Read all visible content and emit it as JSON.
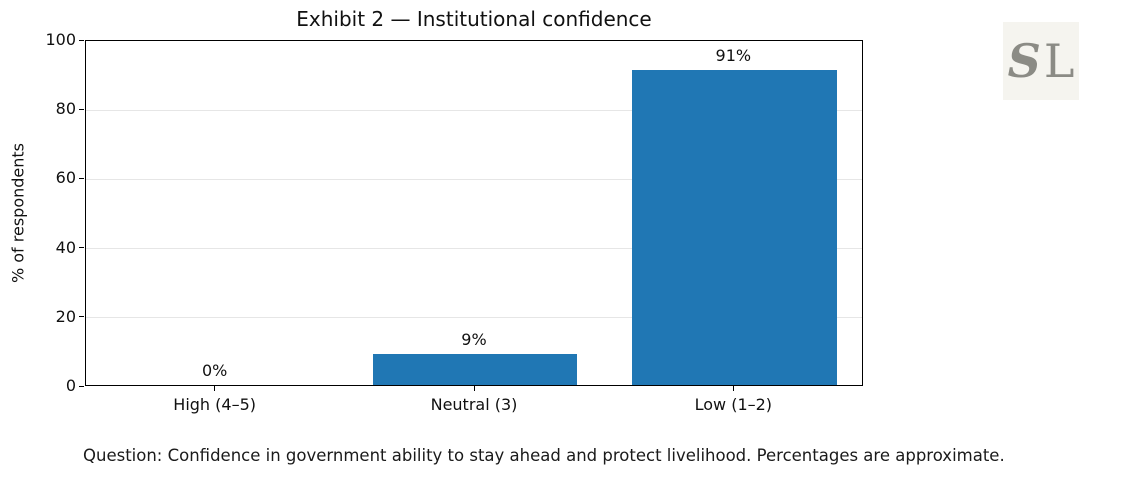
{
  "figure": {
    "title": "Exhibit 2 — Institutional confidence",
    "caption": "Question: Confidence in government ability to stay ahead and protect livelihood. Percentages are approximate."
  },
  "logo": {
    "s": "S",
    "l": "L"
  },
  "colors": {
    "bar": "#2077b4",
    "grid": "#e6e6e6",
    "axis": "#000000",
    "text": "#111111",
    "logo_background": "#f5f4ef",
    "logo_letters": "#8b8b85"
  },
  "chart_data": {
    "type": "bar",
    "title": "Exhibit 2 — Institutional confidence",
    "categories": [
      "High (4–5)",
      "Neutral (3)",
      "Low (1–2)"
    ],
    "values": [
      0,
      9,
      91
    ],
    "value_labels": [
      "0%",
      "9%",
      "91%"
    ],
    "xlabel": "",
    "ylabel": "% of respondents",
    "ylim": [
      0,
      100
    ],
    "yticks": [
      0,
      20,
      40,
      60,
      80,
      100
    ],
    "grid": "horizontal-light",
    "legend": "none",
    "bar_color": "#2077b4",
    "annotation": "Question: Confidence in government ability to stay ahead and protect livelihood. Percentages are approximate."
  }
}
